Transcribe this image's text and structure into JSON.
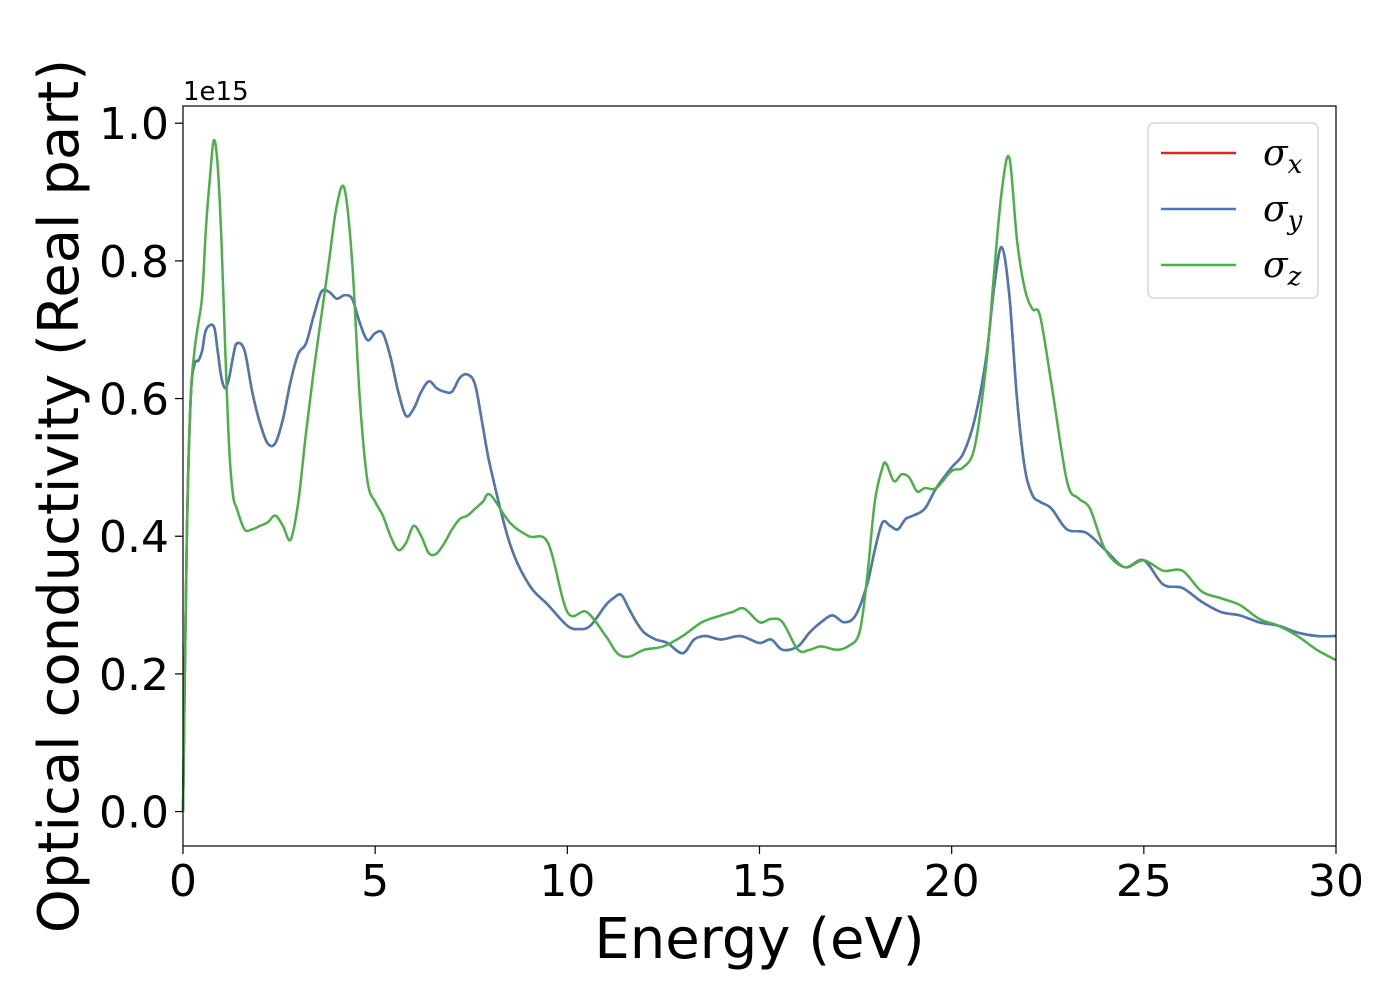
{
  "chart_data": {
    "type": "line",
    "xlabel": "Energy (eV)",
    "ylabel": "Optical conductivity (Real part)",
    "y_offset_label": "1e15",
    "xlim": [
      0,
      30
    ],
    "ylim": [
      -0.05,
      1.025
    ],
    "x_ticks": [
      0,
      5,
      10,
      15,
      20,
      25,
      30
    ],
    "x_tick_labels": [
      "0",
      "5",
      "10",
      "15",
      "20",
      "25",
      "30"
    ],
    "y_ticks": [
      0.0,
      0.2,
      0.4,
      0.6,
      0.8,
      1.0
    ],
    "y_tick_labels": [
      "0.0",
      "0.2",
      "0.4",
      "0.6",
      "0.8",
      "1.0"
    ],
    "grid": false,
    "legend_position": "top-right",
    "series": [
      {
        "name": "σx",
        "symbol": "σ",
        "subscript": "x",
        "color": "#d62728",
        "x": [
          0,
          0.1,
          0.2,
          0.3,
          0.4,
          0.5,
          0.6,
          0.8,
          0.9,
          1.0,
          1.1,
          1.2,
          1.3,
          1.4,
          1.6,
          1.8,
          2.0,
          2.2,
          2.4,
          2.6,
          2.8,
          3.0,
          3.2,
          3.4,
          3.6,
          3.8,
          4.0,
          4.2,
          4.4,
          4.6,
          4.8,
          5.0,
          5.2,
          5.4,
          5.6,
          5.8,
          6.0,
          6.2,
          6.4,
          6.6,
          6.8,
          7.0,
          7.2,
          7.4,
          7.6,
          7.8,
          8.0,
          8.5,
          9.0,
          9.5,
          10.0,
          10.3,
          10.6,
          11.0,
          11.2,
          11.4,
          11.6,
          11.8,
          12.0,
          12.3,
          12.6,
          13.0,
          13.3,
          13.6,
          14.0,
          14.5,
          15.0,
          15.3,
          15.6,
          16.0,
          16.3,
          16.6,
          16.9,
          17.2,
          17.5,
          17.8,
          18.0,
          18.2,
          18.4,
          18.6,
          18.8,
          19.0,
          19.3,
          19.6,
          20.0,
          20.3,
          20.6,
          20.9,
          21.1,
          21.3,
          21.5,
          21.7,
          21.9,
          22.1,
          22.3,
          22.6,
          23.0,
          23.5,
          24.0,
          24.5,
          25.0,
          25.5,
          26.0,
          26.5,
          27.0,
          27.5,
          28.0,
          28.5,
          29.0,
          29.5,
          30.0
        ],
        "y": [
          0.0,
          0.4,
          0.6,
          0.65,
          0.655,
          0.67,
          0.7,
          0.705,
          0.67,
          0.63,
          0.615,
          0.63,
          0.66,
          0.68,
          0.67,
          0.61,
          0.565,
          0.535,
          0.535,
          0.57,
          0.625,
          0.665,
          0.68,
          0.72,
          0.755,
          0.755,
          0.745,
          0.75,
          0.745,
          0.71,
          0.685,
          0.695,
          0.695,
          0.66,
          0.61,
          0.575,
          0.585,
          0.61,
          0.625,
          0.615,
          0.61,
          0.61,
          0.63,
          0.635,
          0.62,
          0.56,
          0.5,
          0.39,
          0.33,
          0.3,
          0.27,
          0.265,
          0.27,
          0.3,
          0.31,
          0.315,
          0.295,
          0.275,
          0.26,
          0.25,
          0.245,
          0.23,
          0.25,
          0.255,
          0.25,
          0.255,
          0.245,
          0.25,
          0.235,
          0.24,
          0.26,
          0.275,
          0.285,
          0.275,
          0.285,
          0.33,
          0.38,
          0.42,
          0.415,
          0.41,
          0.425,
          0.43,
          0.44,
          0.47,
          0.5,
          0.52,
          0.57,
          0.66,
          0.76,
          0.82,
          0.75,
          0.6,
          0.5,
          0.46,
          0.45,
          0.44,
          0.41,
          0.405,
          0.38,
          0.355,
          0.365,
          0.33,
          0.325,
          0.305,
          0.29,
          0.285,
          0.275,
          0.27,
          0.26,
          0.255,
          0.255
        ]
      },
      {
        "name": "σy",
        "symbol": "σ",
        "subscript": "y",
        "color": "#4a7ab0",
        "x": [
          0,
          0.1,
          0.2,
          0.3,
          0.4,
          0.5,
          0.6,
          0.8,
          0.9,
          1.0,
          1.1,
          1.2,
          1.3,
          1.4,
          1.6,
          1.8,
          2.0,
          2.2,
          2.4,
          2.6,
          2.8,
          3.0,
          3.2,
          3.4,
          3.6,
          3.8,
          4.0,
          4.2,
          4.4,
          4.6,
          4.8,
          5.0,
          5.2,
          5.4,
          5.6,
          5.8,
          6.0,
          6.2,
          6.4,
          6.6,
          6.8,
          7.0,
          7.2,
          7.4,
          7.6,
          7.8,
          8.0,
          8.5,
          9.0,
          9.5,
          10.0,
          10.3,
          10.6,
          11.0,
          11.2,
          11.4,
          11.6,
          11.8,
          12.0,
          12.3,
          12.6,
          13.0,
          13.3,
          13.6,
          14.0,
          14.5,
          15.0,
          15.3,
          15.6,
          16.0,
          16.3,
          16.6,
          16.9,
          17.2,
          17.5,
          17.8,
          18.0,
          18.2,
          18.4,
          18.6,
          18.8,
          19.0,
          19.3,
          19.6,
          20.0,
          20.3,
          20.6,
          20.9,
          21.1,
          21.3,
          21.5,
          21.7,
          21.9,
          22.1,
          22.3,
          22.6,
          23.0,
          23.5,
          24.0,
          24.5,
          25.0,
          25.5,
          26.0,
          26.5,
          27.0,
          27.5,
          28.0,
          28.5,
          29.0,
          29.5,
          30.0
        ],
        "y": [
          0.0,
          0.4,
          0.6,
          0.65,
          0.655,
          0.67,
          0.7,
          0.705,
          0.67,
          0.63,
          0.615,
          0.63,
          0.66,
          0.68,
          0.67,
          0.61,
          0.565,
          0.535,
          0.535,
          0.57,
          0.625,
          0.665,
          0.68,
          0.72,
          0.755,
          0.755,
          0.745,
          0.75,
          0.745,
          0.71,
          0.685,
          0.695,
          0.695,
          0.66,
          0.61,
          0.575,
          0.585,
          0.61,
          0.625,
          0.615,
          0.61,
          0.61,
          0.63,
          0.635,
          0.62,
          0.56,
          0.5,
          0.39,
          0.33,
          0.3,
          0.27,
          0.265,
          0.27,
          0.3,
          0.31,
          0.315,
          0.295,
          0.275,
          0.26,
          0.25,
          0.245,
          0.23,
          0.25,
          0.255,
          0.25,
          0.255,
          0.245,
          0.25,
          0.235,
          0.24,
          0.26,
          0.275,
          0.285,
          0.275,
          0.285,
          0.33,
          0.38,
          0.42,
          0.415,
          0.41,
          0.425,
          0.43,
          0.44,
          0.47,
          0.5,
          0.52,
          0.57,
          0.66,
          0.76,
          0.82,
          0.75,
          0.6,
          0.5,
          0.46,
          0.45,
          0.44,
          0.41,
          0.405,
          0.38,
          0.355,
          0.365,
          0.33,
          0.325,
          0.305,
          0.29,
          0.285,
          0.275,
          0.27,
          0.26,
          0.255,
          0.255
        ]
      },
      {
        "name": "σz",
        "symbol": "σ",
        "subscript": "z",
        "color": "#4daf4a",
        "x": [
          0,
          0.1,
          0.2,
          0.3,
          0.4,
          0.5,
          0.6,
          0.7,
          0.8,
          0.9,
          1.0,
          1.1,
          1.2,
          1.3,
          1.4,
          1.6,
          1.8,
          2.0,
          2.2,
          2.4,
          2.6,
          2.8,
          3.0,
          3.2,
          3.4,
          3.6,
          3.8,
          4.0,
          4.2,
          4.4,
          4.6,
          4.8,
          5.0,
          5.2,
          5.4,
          5.6,
          5.8,
          6.0,
          6.2,
          6.4,
          6.6,
          6.8,
          7.0,
          7.2,
          7.4,
          7.6,
          7.8,
          8.0,
          8.5,
          9.0,
          9.5,
          10.0,
          10.5,
          11.0,
          11.3,
          11.6,
          12.0,
          12.5,
          13.0,
          13.5,
          14.0,
          14.3,
          14.6,
          15.0,
          15.3,
          15.6,
          16.0,
          16.3,
          16.6,
          17.0,
          17.3,
          17.6,
          17.8,
          18.0,
          18.2,
          18.3,
          18.5,
          18.7,
          18.9,
          19.1,
          19.3,
          19.6,
          20.0,
          20.3,
          20.6,
          20.9,
          21.1,
          21.3,
          21.5,
          21.7,
          21.9,
          22.1,
          22.3,
          22.6,
          23.0,
          23.3,
          23.6,
          24.0,
          24.5,
          25.0,
          25.5,
          26.0,
          26.5,
          27.0,
          27.5,
          28.0,
          28.5,
          29.0,
          29.5,
          30.0
        ],
        "y": [
          0.0,
          0.4,
          0.6,
          0.67,
          0.71,
          0.75,
          0.85,
          0.92,
          0.975,
          0.94,
          0.83,
          0.67,
          0.53,
          0.46,
          0.44,
          0.41,
          0.41,
          0.415,
          0.42,
          0.43,
          0.415,
          0.395,
          0.45,
          0.55,
          0.64,
          0.72,
          0.8,
          0.88,
          0.905,
          0.8,
          0.6,
          0.48,
          0.45,
          0.43,
          0.4,
          0.38,
          0.39,
          0.415,
          0.4,
          0.375,
          0.375,
          0.39,
          0.41,
          0.425,
          0.43,
          0.44,
          0.45,
          0.46,
          0.42,
          0.4,
          0.39,
          0.29,
          0.29,
          0.255,
          0.23,
          0.225,
          0.235,
          0.24,
          0.255,
          0.275,
          0.285,
          0.29,
          0.295,
          0.275,
          0.28,
          0.275,
          0.235,
          0.235,
          0.24,
          0.235,
          0.24,
          0.26,
          0.34,
          0.45,
          0.5,
          0.505,
          0.48,
          0.49,
          0.485,
          0.465,
          0.47,
          0.47,
          0.495,
          0.5,
          0.53,
          0.65,
          0.78,
          0.9,
          0.95,
          0.83,
          0.76,
          0.73,
          0.72,
          0.62,
          0.48,
          0.455,
          0.44,
          0.38,
          0.355,
          0.365,
          0.35,
          0.35,
          0.32,
          0.31,
          0.3,
          0.28,
          0.27,
          0.255,
          0.235,
          0.22
        ]
      }
    ]
  }
}
